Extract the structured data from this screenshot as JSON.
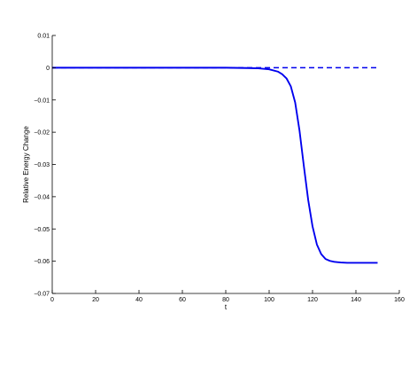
{
  "chart_data": {
    "type": "line",
    "title": "",
    "xlabel": "t",
    "ylabel": "Relative Energy Change",
    "xlim": [
      0,
      160
    ],
    "ylim": [
      -0.07,
      0.01
    ],
    "x_ticks": [
      0,
      20,
      40,
      60,
      80,
      100,
      120,
      140,
      160
    ],
    "y_ticks": [
      0.01,
      0,
      -0.01,
      -0.02,
      -0.03,
      -0.04,
      -0.05,
      -0.06,
      -0.07
    ],
    "x_tick_labels": [
      "0",
      "20",
      "40",
      "60",
      "80",
      "100",
      "120",
      "140",
      "160"
    ],
    "y_tick_labels": [
      "0.01",
      "0",
      "−0.01",
      "−0.02",
      "−0.03",
      "−0.04",
      "−0.05",
      "−0.06",
      "−0.07"
    ],
    "grid": false,
    "series": [
      {
        "style": "solid",
        "color": "#0000ee",
        "x": [
          0,
          20,
          40,
          60,
          80,
          90,
          95,
          100,
          104,
          106,
          108,
          110,
          112,
          114,
          116,
          118,
          120,
          122,
          124,
          126,
          128,
          130,
          133,
          136,
          140,
          145,
          150
        ],
        "y": [
          0,
          0,
          0,
          0,
          0,
          -0.0001,
          -0.0002,
          -0.0005,
          -0.0012,
          -0.002,
          -0.0033,
          -0.0058,
          -0.0108,
          -0.0195,
          -0.0305,
          -0.041,
          -0.0492,
          -0.0548,
          -0.0578,
          -0.0593,
          -0.0599,
          -0.0602,
          -0.0604,
          -0.0605,
          -0.0605,
          -0.0605,
          -0.0605
        ]
      },
      {
        "style": "dashed",
        "color": "#0000ee",
        "x": [
          0,
          150
        ],
        "y": [
          0,
          0
        ]
      }
    ]
  }
}
